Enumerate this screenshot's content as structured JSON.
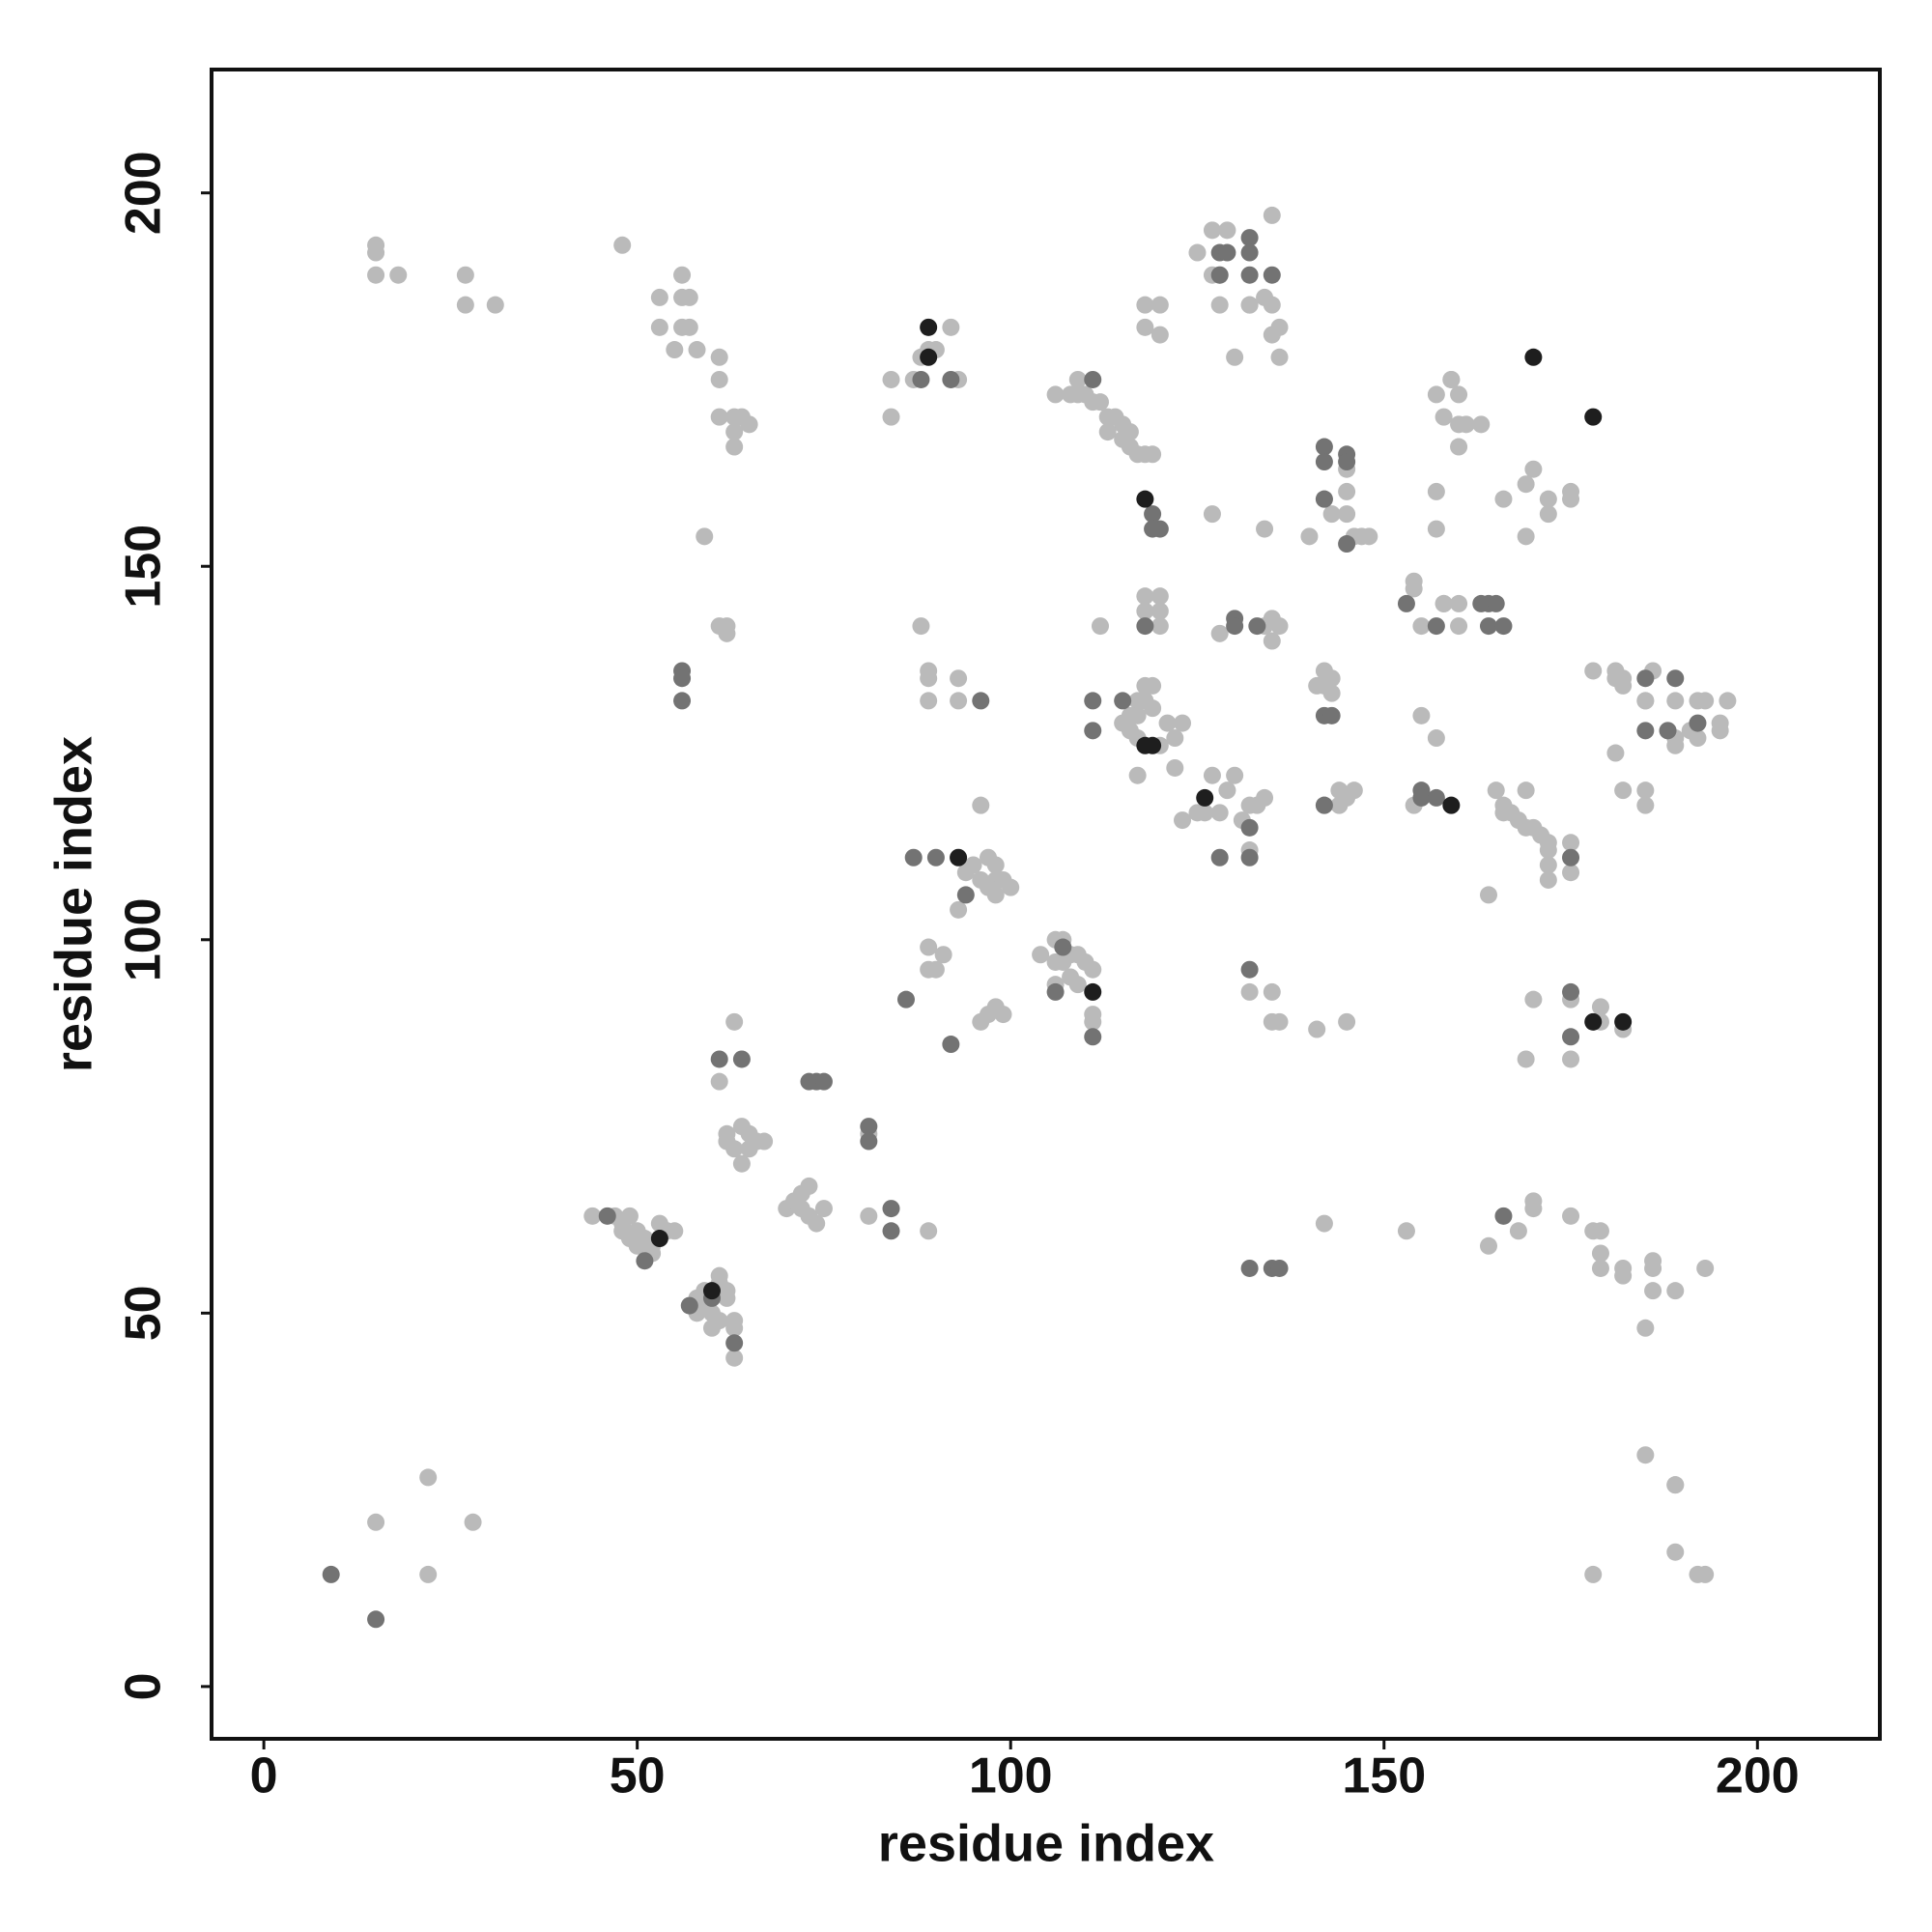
{
  "chart_data": {
    "type": "scatter",
    "x_label": "residue index",
    "y_label": "residue index",
    "xlim": [
      -7,
      216
    ],
    "ylim": [
      -7,
      216
    ],
    "xticks": [
      0,
      50,
      100,
      150,
      200
    ],
    "yticks": [
      0,
      50,
      100,
      150,
      200
    ],
    "series": [
      {
        "color": "#bababa",
        "x": [
          15,
          22,
          22,
          28,
          15,
          15,
          15,
          18,
          27,
          27,
          31,
          48,
          53,
          56,
          57,
          56,
          53,
          56,
          57,
          55,
          58,
          61,
          61,
          61,
          63,
          64,
          65,
          63,
          63,
          59,
          61,
          62,
          62,
          84,
          84,
          87,
          88,
          89,
          90,
          92,
          93,
          88,
          89,
          89,
          89,
          93,
          93,
          106,
          108,
          109,
          109,
          110,
          111,
          112,
          113,
          114,
          115,
          113,
          115,
          116,
          117,
          118,
          119,
          116,
          118,
          120,
          118,
          120,
          118,
          120,
          118,
          120,
          120,
          112,
          117,
          118,
          119,
          118,
          119,
          117,
          115,
          116,
          117,
          120,
          122,
          123,
          121,
          116,
          117,
          122,
          123,
          125,
          125,
          128,
          129,
          127,
          127,
          128,
          132,
          135,
          134,
          132,
          135,
          136,
          135,
          136,
          130,
          127,
          134,
          135,
          136,
          134,
          135,
          128,
          129,
          130,
          127,
          126,
          128,
          131,
          133,
          134,
          132,
          132,
          135,
          132,
          135,
          136,
          145,
          145,
          142,
          145,
          143,
          145,
          146,
          147,
          148,
          140,
          142,
          142,
          143,
          141,
          143,
          144,
          145,
          146,
          144,
          142,
          141,
          142,
          153,
          154,
          154,
          157,
          158,
          160,
          158,
          160,
          155,
          157,
          159,
          159,
          160,
          158,
          161,
          163,
          160,
          160,
          169,
          170,
          169,
          172,
          175,
          166,
          175,
          172,
          157,
          155,
          157,
          154,
          164,
          165,
          166,
          167,
          168,
          169,
          170,
          171,
          172,
          172,
          172,
          172,
          164,
          166,
          169,
          175,
          175,
          175,
          179,
          179,
          182,
          170,
          175,
          169,
          170,
          170,
          168,
          175,
          178,
          179,
          179,
          179,
          182,
          182,
          186,
          186,
          186,
          189,
          193,
          185,
          185,
          189,
          189,
          189,
          192,
          193,
          178,
          178,
          181,
          181,
          182,
          186,
          182,
          185,
          189,
          192,
          193,
          196,
          185,
          189,
          191,
          195,
          195,
          188,
          189,
          192,
          181,
          182,
          185,
          185,
          96,
          97,
          98,
          95,
          94,
          96,
          98,
          99,
          100,
          97,
          98,
          93,
          89,
          91,
          89,
          90,
          96,
          97,
          98,
          99,
          104,
          106,
          107,
          106,
          107,
          108,
          109,
          110,
          111,
          106,
          108,
          109,
          111,
          111,
          81,
          81,
          89,
          63,
          61,
          62,
          64,
          65,
          66,
          67,
          63,
          65,
          64,
          62,
          70,
          71,
          72,
          73,
          72,
          73,
          74,
          75,
          44,
          47,
          48,
          49,
          48,
          49,
          50,
          51,
          52,
          53,
          55,
          54,
          50,
          52,
          58,
          59,
          61,
          61,
          59,
          58,
          60,
          60,
          62,
          62,
          63,
          63,
          63,
          61
        ],
        "y": [
          22,
          28,
          15,
          22,
          193,
          192,
          189,
          189,
          189,
          185,
          185,
          193,
          186,
          186,
          186,
          189,
          182,
          182,
          182,
          179,
          179,
          178,
          175,
          170,
          170,
          170,
          169,
          168,
          166,
          154,
          142,
          142,
          141,
          175,
          170,
          175,
          178,
          179,
          179,
          182,
          175,
          142,
          136,
          135,
          132,
          135,
          132,
          173,
          173,
          175,
          173,
          173,
          172,
          172,
          170,
          170,
          169,
          168,
          167,
          166,
          165,
          165,
          165,
          168,
          185,
          185,
          182,
          181,
          146,
          146,
          144,
          144,
          142,
          142,
          132,
          132,
          134,
          134,
          131,
          130,
          129,
          128,
          127,
          126,
          127,
          129,
          129,
          130,
          122,
          123,
          116,
          117,
          192,
          189,
          195,
          195,
          189,
          185,
          185,
          197,
          186,
          185,
          185,
          182,
          181,
          178,
          178,
          157,
          155,
          143,
          142,
          142,
          140,
          141,
          120,
          122,
          122,
          117,
          117,
          116,
          118,
          119,
          118,
          112,
          93,
          93,
          89,
          89,
          89,
          163,
          159,
          160,
          157,
          157,
          154,
          154,
          154,
          154,
          134,
          136,
          135,
          134,
          133,
          120,
          119,
          120,
          118,
          118,
          88,
          62,
          61,
          147,
          148,
          160,
          145,
          145,
          145,
          142,
          142,
          173,
          175,
          175,
          173,
          170,
          169,
          169,
          169,
          166,
          154,
          163,
          161,
          159,
          159,
          159,
          160,
          157,
          155,
          130,
          127,
          118,
          59,
          120,
          118,
          117,
          116,
          115,
          115,
          114,
          113,
          112,
          110,
          108,
          106,
          117,
          120,
          113,
          109,
          92,
          89,
          91,
          88,
          92,
          84,
          84,
          65,
          64,
          61,
          63,
          61,
          61,
          58,
          56,
          55,
          56,
          53,
          57,
          56,
          53,
          56,
          48,
          31,
          27,
          27,
          18,
          15,
          15,
          15,
          136,
          135,
          136,
          135,
          136,
          134,
          132,
          132,
          132,
          132,
          132,
          132,
          127,
          128,
          128,
          129,
          128,
          126,
          127,
          125,
          120,
          118,
          120,
          118,
          111,
          110,
          110,
          109,
          108,
          108,
          108,
          107,
          107,
          106,
          104,
          99,
          98,
          96,
          96,
          89,
          90,
          91,
          90,
          98,
          100,
          100,
          97,
          97,
          98,
          98,
          97,
          96,
          94,
          95,
          94,
          90,
          89,
          74,
          63,
          61,
          89,
          81,
          74,
          75,
          74,
          73,
          73,
          72,
          72,
          70,
          73,
          64,
          65,
          66,
          67,
          64,
          63,
          62,
          64,
          63,
          63,
          62,
          63,
          61,
          60,
          61,
          60,
          58,
          62,
          61,
          61,
          59,
          59,
          52,
          53,
          55,
          54,
          51,
          50,
          50,
          48,
          53,
          52,
          49,
          48,
          44,
          49
        ]
      },
      {
        "color": "#737373",
        "x": [
          9,
          15,
          56,
          56,
          56,
          88,
          92,
          96,
          111,
          119,
          120,
          119,
          118,
          111,
          111,
          115,
          128,
          129,
          128,
          132,
          132,
          132,
          135,
          130,
          130,
          133,
          128,
          132,
          132,
          132,
          132,
          135,
          136,
          142,
          142,
          145,
          145,
          142,
          145,
          142,
          143,
          142,
          153,
          157,
          163,
          164,
          165,
          164,
          166,
          155,
          155,
          157,
          175,
          175,
          175,
          166,
          185,
          189,
          185,
          188,
          192,
          90,
          87,
          94,
          86,
          92,
          106,
          111,
          107,
          81,
          81,
          84,
          84,
          73,
          74,
          75,
          61,
          64,
          46,
          51,
          57,
          63,
          60
        ],
        "y": [
          15,
          9,
          136,
          135,
          132,
          175,
          175,
          132,
          175,
          157,
          155,
          155,
          142,
          132,
          128,
          132,
          192,
          192,
          189,
          194,
          192,
          189,
          189,
          143,
          142,
          142,
          111,
          115,
          111,
          96,
          56,
          56,
          56,
          166,
          164,
          165,
          164,
          159,
          153,
          130,
          130,
          118,
          145,
          142,
          145,
          145,
          145,
          142,
          142,
          120,
          119,
          119,
          111,
          93,
          87,
          63,
          135,
          135,
          128,
          128,
          129,
          111,
          111,
          106,
          92,
          86,
          93,
          87,
          99,
          75,
          73,
          64,
          61,
          81,
          81,
          81,
          84,
          84,
          63,
          57,
          51,
          46,
          52
        ]
      },
      {
        "color": "#1e1e1e",
        "x": [
          89,
          89,
          118,
          118,
          119,
          126,
          159,
          170,
          178,
          111,
          178,
          182,
          93,
          53,
          60
        ],
        "y": [
          182,
          178,
          159,
          126,
          126,
          119,
          118,
          178,
          170,
          93,
          89,
          89,
          111,
          60,
          53
        ]
      }
    ]
  }
}
